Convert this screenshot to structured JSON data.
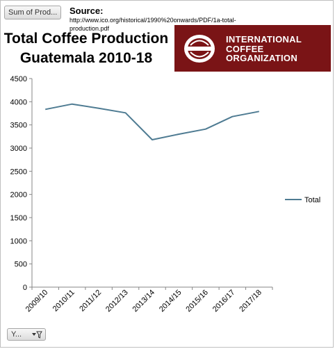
{
  "pivot": {
    "field_button": "Sum of Prod...",
    "filter_button": "Y..."
  },
  "source": {
    "label": "Source:",
    "url": "http://www.ico.org/historical/1990%20onwards/PDF/1a-total-production.pdf"
  },
  "logo": {
    "line1": "INTERNATIONAL",
    "line2": "COFFEE",
    "line3": "ORGANIZATION",
    "color": "#7a1416"
  },
  "chart_data": {
    "type": "line",
    "title_line1": "Total Coffee Production",
    "title_line2": "Guatemala 2010-18",
    "categories": [
      "2009/10",
      "2010/11",
      "2011/12",
      "2012/13",
      "2013/14",
      "2014/15",
      "2015/16",
      "2016/17",
      "2017/18"
    ],
    "series": [
      {
        "name": "Total",
        "values": [
          3835,
          3950,
          3860,
          3760,
          3180,
          3300,
          3410,
          3680,
          3790
        ],
        "color": "#4e7b92"
      }
    ],
    "ylim": [
      0,
      4500
    ],
    "yticks": [
      0,
      500,
      1000,
      1500,
      2000,
      2500,
      3000,
      3500,
      4000,
      4500
    ],
    "grid": false,
    "legend": "right"
  }
}
